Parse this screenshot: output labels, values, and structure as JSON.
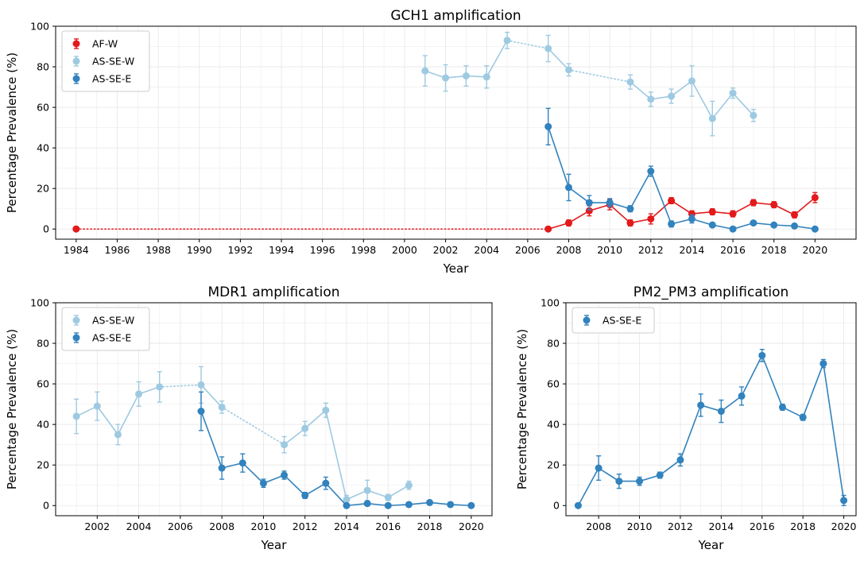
{
  "chart_data": [
    {
      "type": "line",
      "title": "GCH1 amplification",
      "xlabel": "Year",
      "ylabel": "Percentage Prevalence (%)",
      "xlim": [
        1983,
        2022
      ],
      "ylim": [
        -5,
        100
      ],
      "xticks": [
        1984,
        1986,
        1988,
        1990,
        1992,
        1994,
        1996,
        1998,
        2000,
        2002,
        2004,
        2006,
        2008,
        2010,
        2012,
        2014,
        2016,
        2018,
        2020
      ],
      "yticks": [
        0,
        20,
        40,
        60,
        80,
        100
      ],
      "grid": true,
      "legend_position": "top-left",
      "series": [
        {
          "name": "AF-W",
          "color": "#e31a1c",
          "points": [
            {
              "x": 1984,
              "y": 0,
              "err": 0
            },
            {
              "x": 2007,
              "y": 0,
              "err": 0
            },
            {
              "x": 2008,
              "y": 3,
              "err": 1.5
            },
            {
              "x": 2009,
              "y": 9,
              "err": 2.5
            },
            {
              "x": 2010,
              "y": 12,
              "err": 2.5
            },
            {
              "x": 2011,
              "y": 3,
              "err": 1.5
            },
            {
              "x": 2012,
              "y": 5,
              "err": 2.5
            },
            {
              "x": 2013,
              "y": 14,
              "err": 1.5
            },
            {
              "x": 2014,
              "y": 7.5,
              "err": 1.5
            },
            {
              "x": 2015,
              "y": 8.5,
              "err": 1.5
            },
            {
              "x": 2016,
              "y": 7.5,
              "err": 1.5
            },
            {
              "x": 2017,
              "y": 13,
              "err": 1.5
            },
            {
              "x": 2018,
              "y": 12,
              "err": 1.5
            },
            {
              "x": 2019,
              "y": 7,
              "err": 1.5
            },
            {
              "x": 2020,
              "y": 15.5,
              "err": 2.5
            }
          ],
          "dotted_segments": [
            [
              1984,
              2007
            ]
          ]
        },
        {
          "name": "AS-SE-W",
          "color": "#9ecae1",
          "points": [
            {
              "x": 2001,
              "y": 78,
              "err": 7.5
            },
            {
              "x": 2002,
              "y": 74.5,
              "err": 6.5
            },
            {
              "x": 2003,
              "y": 75.5,
              "err": 5
            },
            {
              "x": 2004,
              "y": 75,
              "err": 5.5
            },
            {
              "x": 2005,
              "y": 93,
              "err": 4
            },
            {
              "x": 2007,
              "y": 89,
              "err": 6.5
            },
            {
              "x": 2008,
              "y": 78.5,
              "err": 3
            },
            {
              "x": 2011,
              "y": 72.5,
              "err": 3.5
            },
            {
              "x": 2012,
              "y": 64,
              "err": 3.5
            },
            {
              "x": 2013,
              "y": 65.5,
              "err": 3.5
            },
            {
              "x": 2014,
              "y": 73,
              "err": 7.5
            },
            {
              "x": 2015,
              "y": 54.5,
              "err": 8.5
            },
            {
              "x": 2016,
              "y": 67,
              "err": 2.5
            },
            {
              "x": 2017,
              "y": 56,
              "err": 3
            }
          ],
          "dotted_segments": [
            [
              2005,
              2007
            ],
            [
              2008,
              2011
            ]
          ]
        },
        {
          "name": "AS-SE-E",
          "color": "#3182bd",
          "points": [
            {
              "x": 2007,
              "y": 50.5,
              "err": 9
            },
            {
              "x": 2008,
              "y": 20.5,
              "err": 6.5
            },
            {
              "x": 2009,
              "y": 13,
              "err": 3.5
            },
            {
              "x": 2010,
              "y": 13,
              "err": 2
            },
            {
              "x": 2011,
              "y": 10,
              "err": 1.5
            },
            {
              "x": 2012,
              "y": 28.5,
              "err": 2.5
            },
            {
              "x": 2013,
              "y": 2.5,
              "err": 1.5
            },
            {
              "x": 2014,
              "y": 5,
              "err": 2
            },
            {
              "x": 2015,
              "y": 2,
              "err": 1
            },
            {
              "x": 2016,
              "y": 0,
              "err": 0.5
            },
            {
              "x": 2017,
              "y": 3,
              "err": 1
            },
            {
              "x": 2018,
              "y": 2,
              "err": 0.5
            },
            {
              "x": 2019,
              "y": 1.5,
              "err": 0.5
            },
            {
              "x": 2020,
              "y": 0,
              "err": 0.5
            }
          ],
          "dotted_segments": []
        }
      ]
    },
    {
      "type": "line",
      "title": "MDR1 amplification",
      "xlabel": "Year",
      "ylabel": "Percentage Prevalence (%)",
      "xlim": [
        2000,
        2021
      ],
      "ylim": [
        -5,
        100
      ],
      "xticks": [
        2002,
        2004,
        2006,
        2008,
        2010,
        2012,
        2014,
        2016,
        2018,
        2020
      ],
      "yticks": [
        0,
        20,
        40,
        60,
        80,
        100
      ],
      "grid": true,
      "legend_position": "top-left",
      "series": [
        {
          "name": "AS-SE-W",
          "color": "#9ecae1",
          "points": [
            {
              "x": 2001,
              "y": 44,
              "err": 8.5
            },
            {
              "x": 2002,
              "y": 49,
              "err": 7
            },
            {
              "x": 2003,
              "y": 35,
              "err": 5
            },
            {
              "x": 2004,
              "y": 55,
              "err": 6
            },
            {
              "x": 2005,
              "y": 58.5,
              "err": 7.5
            },
            {
              "x": 2007,
              "y": 59.5,
              "err": 9
            },
            {
              "x": 2008,
              "y": 48.5,
              "err": 3
            },
            {
              "x": 2011,
              "y": 30,
              "err": 4
            },
            {
              "x": 2012,
              "y": 38,
              "err": 3.5
            },
            {
              "x": 2013,
              "y": 47,
              "err": 3.5
            },
            {
              "x": 2014,
              "y": 3,
              "err": 2
            },
            {
              "x": 2015,
              "y": 7.5,
              "err": 5
            },
            {
              "x": 2016,
              "y": 4,
              "err": 1.5
            },
            {
              "x": 2017,
              "y": 10,
              "err": 2
            }
          ],
          "dotted_segments": [
            [
              2005,
              2007
            ],
            [
              2008,
              2011
            ]
          ]
        },
        {
          "name": "AS-SE-E",
          "color": "#3182bd",
          "points": [
            {
              "x": 2007,
              "y": 46.5,
              "err": 9.5
            },
            {
              "x": 2008,
              "y": 18.5,
              "err": 5.5
            },
            {
              "x": 2009,
              "y": 21,
              "err": 4.5
            },
            {
              "x": 2010,
              "y": 11,
              "err": 2
            },
            {
              "x": 2011,
              "y": 15,
              "err": 2
            },
            {
              "x": 2012,
              "y": 5,
              "err": 1.5
            },
            {
              "x": 2013,
              "y": 11,
              "err": 3
            },
            {
              "x": 2014,
              "y": 0,
              "err": 0.5
            },
            {
              "x": 2015,
              "y": 1,
              "err": 0.5
            },
            {
              "x": 2016,
              "y": 0,
              "err": 0.5
            },
            {
              "x": 2017,
              "y": 0.5,
              "err": 0.5
            },
            {
              "x": 2018,
              "y": 1.5,
              "err": 0.5
            },
            {
              "x": 2019,
              "y": 0.5,
              "err": 0.5
            },
            {
              "x": 2020,
              "y": 0,
              "err": 0.5
            }
          ],
          "dotted_segments": []
        }
      ]
    },
    {
      "type": "line",
      "title": "PM2_PM3 amplification",
      "xlabel": "Year",
      "ylabel": "Percentage Prevalence (%)",
      "xlim": [
        2006.4,
        2020.6
      ],
      "ylim": [
        -5,
        100
      ],
      "xticks": [
        2008,
        2010,
        2012,
        2014,
        2016,
        2018,
        2020
      ],
      "yticks": [
        0,
        20,
        40,
        60,
        80,
        100
      ],
      "grid": true,
      "legend_position": "top-left",
      "series": [
        {
          "name": "AS-SE-E",
          "color": "#3182bd",
          "points": [
            {
              "x": 2007,
              "y": 0,
              "err": 0.5
            },
            {
              "x": 2008,
              "y": 18.5,
              "err": 6
            },
            {
              "x": 2009,
              "y": 12,
              "err": 3.5
            },
            {
              "x": 2010,
              "y": 12,
              "err": 2
            },
            {
              "x": 2011,
              "y": 15,
              "err": 1.5
            },
            {
              "x": 2012,
              "y": 22.5,
              "err": 3
            },
            {
              "x": 2013,
              "y": 49.5,
              "err": 5.5
            },
            {
              "x": 2014,
              "y": 46.5,
              "err": 5.5
            },
            {
              "x": 2015,
              "y": 54,
              "err": 4.5
            },
            {
              "x": 2016,
              "y": 74,
              "err": 3
            },
            {
              "x": 2017,
              "y": 48.5,
              "err": 1.5
            },
            {
              "x": 2018,
              "y": 43.5,
              "err": 1.5
            },
            {
              "x": 2019,
              "y": 70,
              "err": 2
            },
            {
              "x": 2020,
              "y": 2.5,
              "err": 2.5
            }
          ],
          "dotted_segments": []
        }
      ]
    }
  ]
}
